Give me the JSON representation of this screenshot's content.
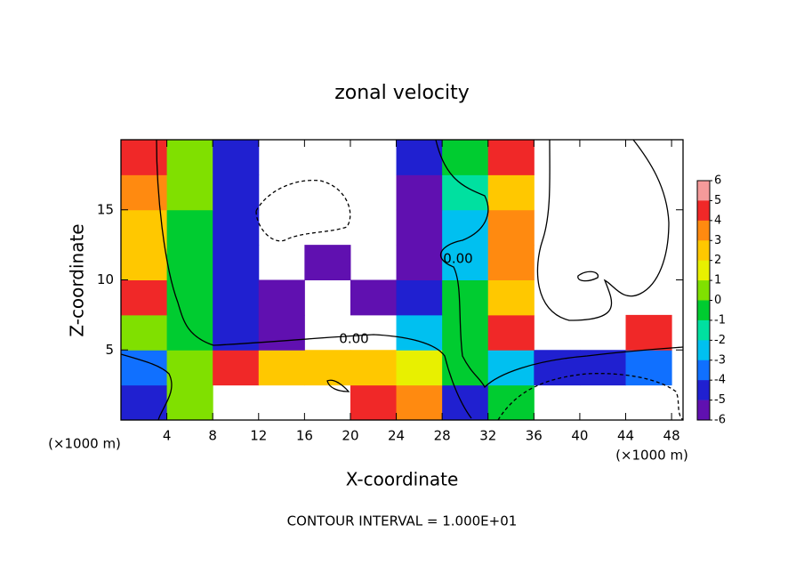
{
  "chart_data": {
    "type": "contour",
    "title": "zonal velocity",
    "xlabel": "X-coordinate",
    "ylabel": "Z-coordinate",
    "x_unit": "(×1000 m)",
    "y_unit": "(×1000 m)",
    "footnote": "CONTOUR INTERVAL = 1.000E+01",
    "contour_labels": [
      "0.00",
      "0.00"
    ],
    "xlim": [
      0,
      49
    ],
    "ylim": [
      0,
      20
    ],
    "xticks": [
      4,
      8,
      12,
      16,
      20,
      24,
      28,
      32,
      36,
      40,
      44,
      48
    ],
    "yticks": [
      5,
      10,
      15
    ],
    "x": [
      2,
      6,
      10,
      14,
      18,
      22,
      26,
      30,
      34,
      38,
      42,
      46
    ],
    "y": [
      1.25,
      3.75,
      6.25,
      8.75,
      11.25,
      13.75,
      16.25,
      18.75
    ],
    "z": [
      [
        -4,
        1,
        null,
        null,
        null,
        5,
        4,
        -4,
        0,
        null,
        null,
        null
      ],
      [
        -3,
        1,
        5,
        3,
        3,
        3,
        2,
        0,
        -2,
        -4,
        -4,
        -3
      ],
      [
        1,
        0,
        -4,
        -5,
        null,
        null,
        -2,
        0,
        5,
        null,
        null,
        5
      ],
      [
        5,
        0,
        -4,
        -5,
        null,
        -6,
        -4,
        0,
        3,
        null,
        null,
        null
      ],
      [
        3,
        0,
        -4,
        null,
        -6,
        null,
        -5,
        -2,
        4,
        null,
        null,
        null
      ],
      [
        3,
        0,
        -4,
        null,
        null,
        null,
        -5,
        -2,
        4,
        null,
        null,
        null
      ],
      [
        4,
        1,
        -4,
        null,
        null,
        null,
        -5,
        -1,
        3,
        null,
        null,
        null
      ],
      [
        5,
        1,
        -4,
        null,
        null,
        null,
        -4,
        0,
        5,
        null,
        null,
        null
      ]
    ],
    "colorbar_ticks": [
      6,
      5,
      4,
      3,
      2,
      1,
      0,
      -1,
      -2,
      -3,
      -4,
      -5,
      -6
    ],
    "colors": [
      "#f59a9a",
      "#f02828",
      "#ff8a10",
      "#ffc800",
      "#e8f000",
      "#80e000",
      "#00cc30",
      "#00e0a0",
      "#00c0f0",
      "#1070ff",
      "#2020d0",
      "#6010b0"
    ]
  }
}
